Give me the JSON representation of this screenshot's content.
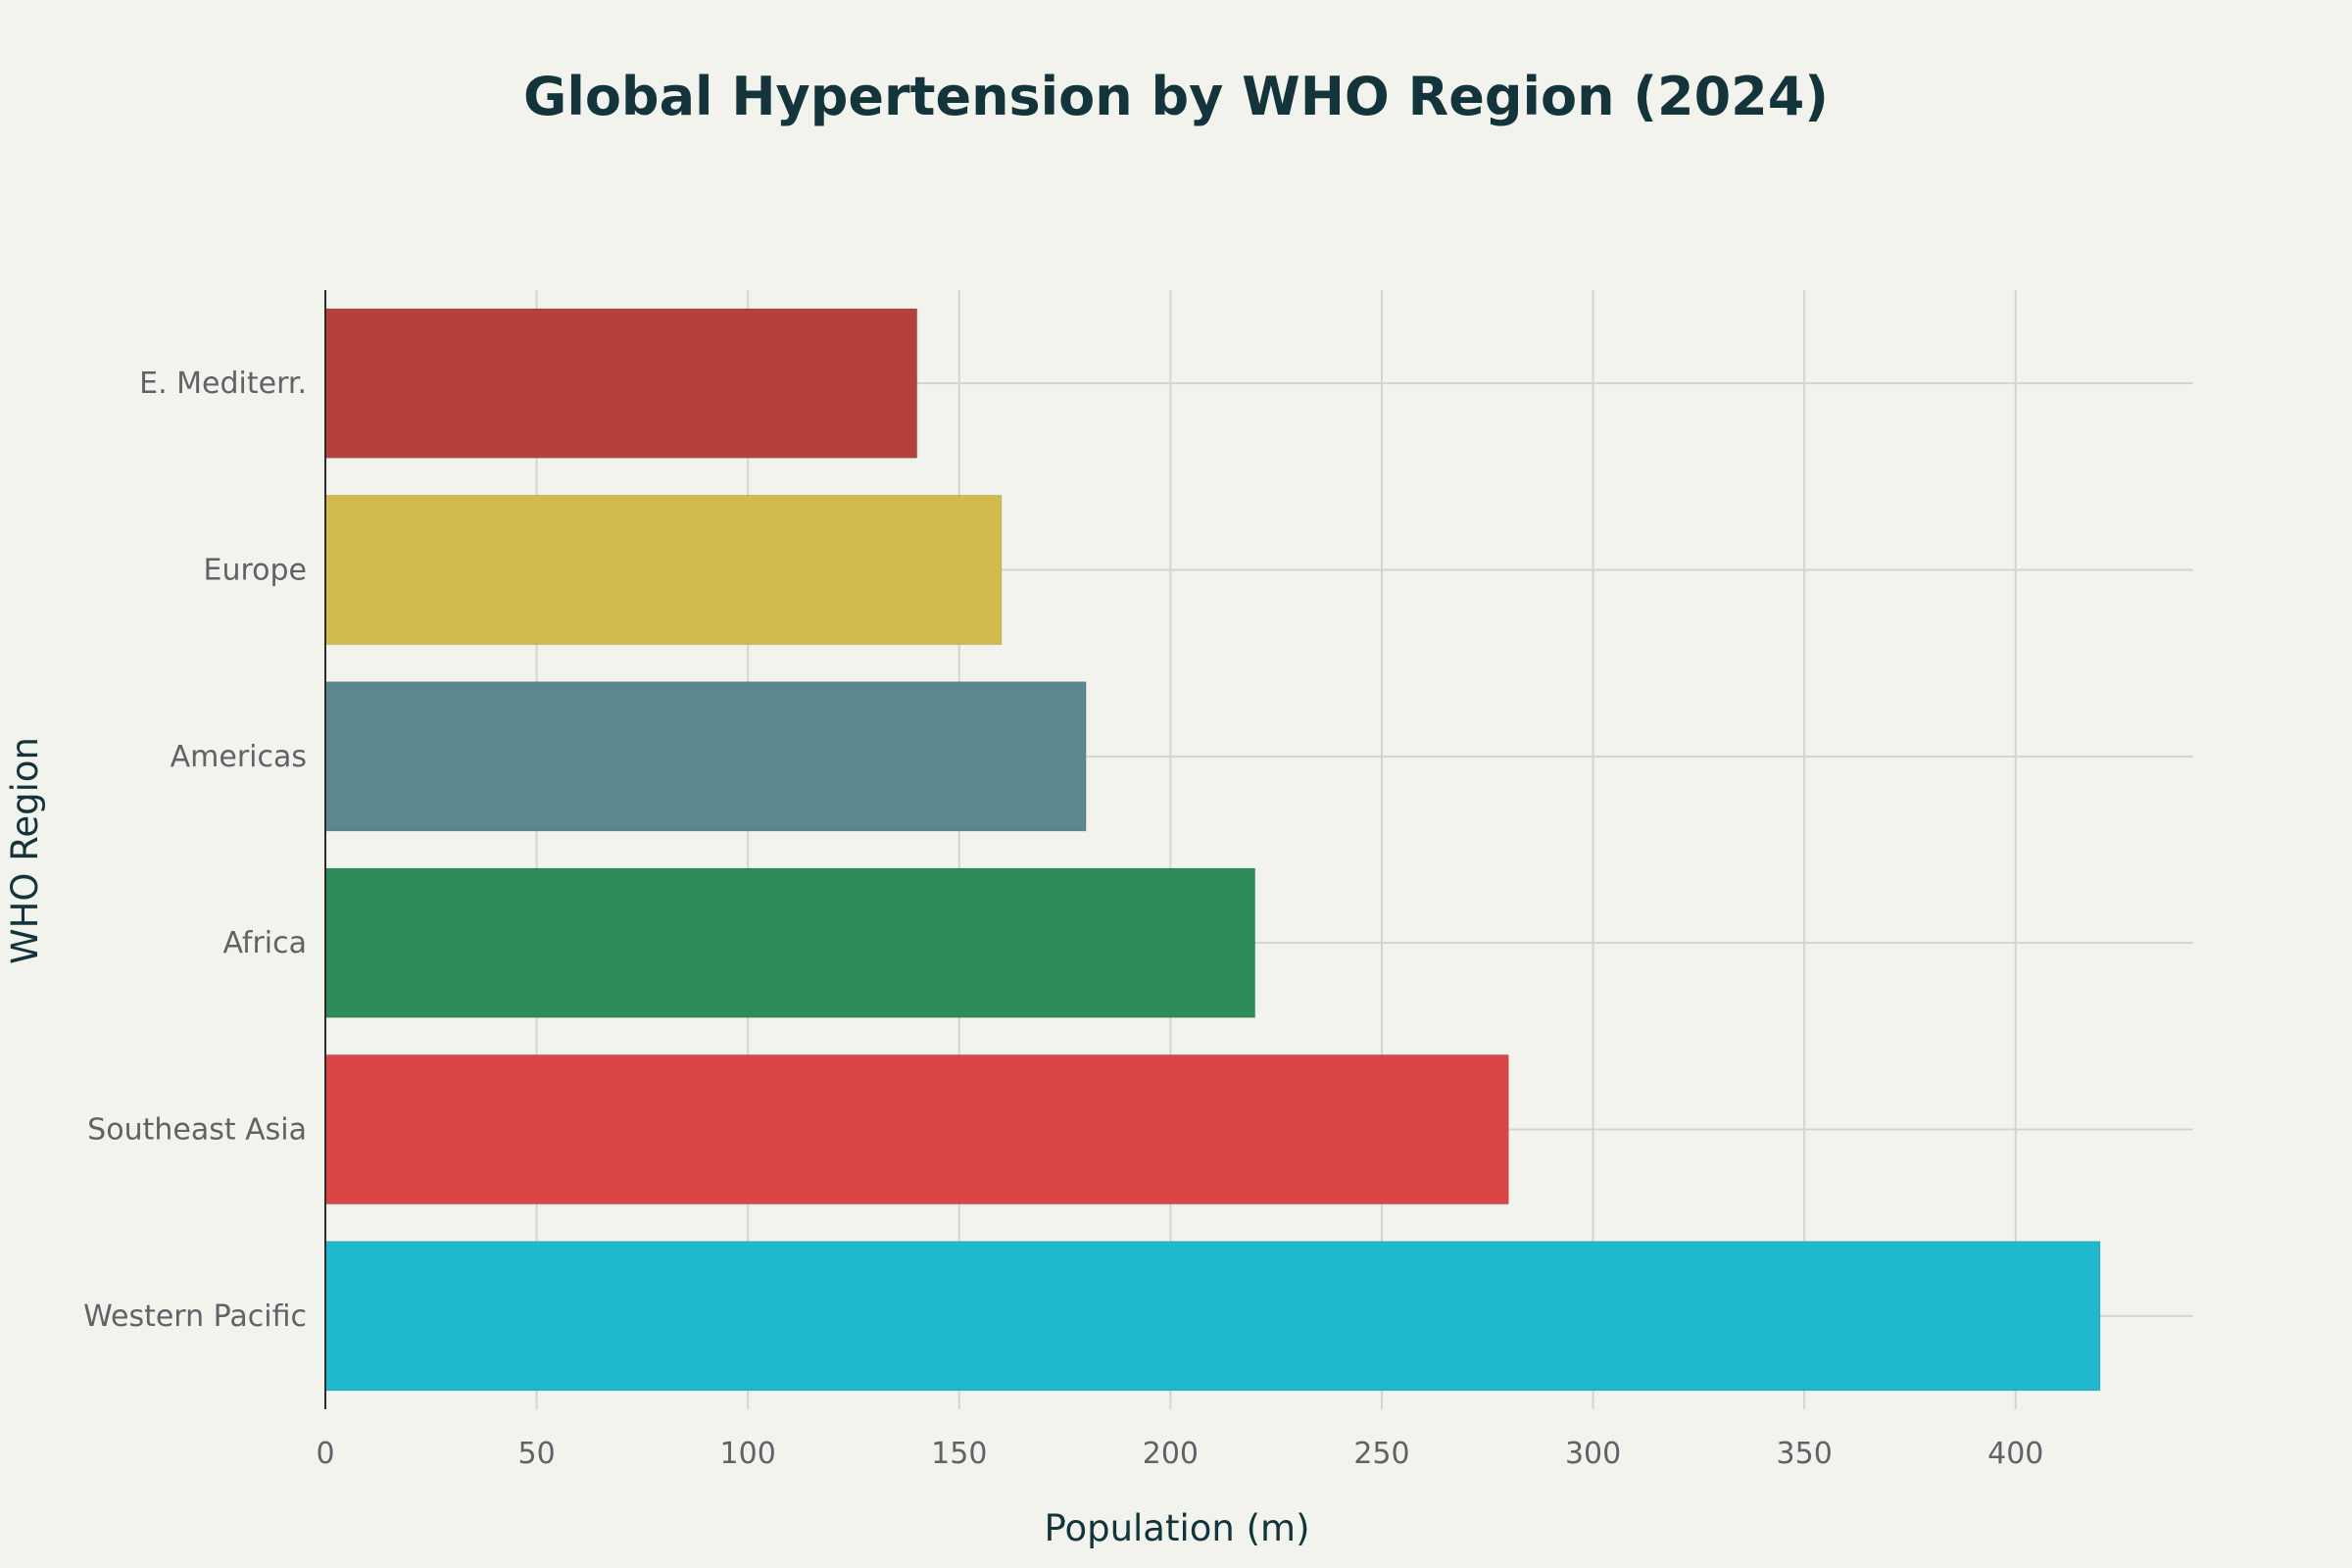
{
  "chart_data": {
    "type": "bar",
    "orientation": "horizontal",
    "title": "Global Hypertension by WHO Region (2024)",
    "xlabel": "Population (m)",
    "ylabel": "WHO Region",
    "categories": [
      "E. Mediterr.",
      "Europe",
      "Americas",
      "Africa",
      "Southeast Asia",
      "Western Pacific"
    ],
    "values": [
      140,
      160,
      180,
      220,
      280,
      420
    ],
    "colors": [
      "#b4413c",
      "#d2ba4c",
      "#5d878f",
      "#2e8b57",
      "#db4545",
      "#1fb8cd"
    ],
    "xlim": [
      0,
      442
    ],
    "xticks": [
      0,
      50,
      100,
      150,
      200,
      250,
      300,
      350,
      400
    ],
    "grid": true,
    "legend": "none"
  }
}
